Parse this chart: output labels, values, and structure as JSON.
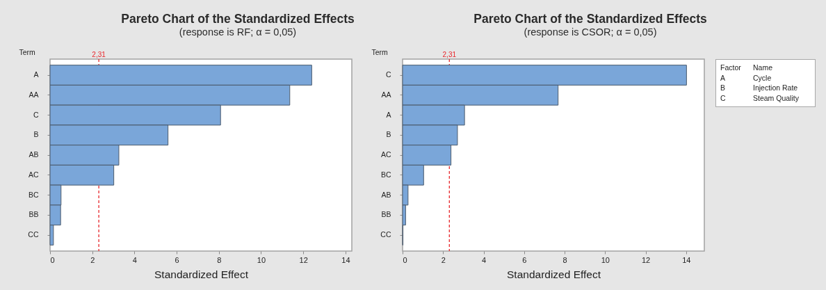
{
  "chart_data": [
    {
      "type": "bar",
      "orientation": "horizontal",
      "title": "Pareto Chart of the Standardized Effects",
      "subtitle": "(response is RF; α = 0,05)",
      "xlabel": "Standardized Effect",
      "ylabel": "Term",
      "categories": [
        "A",
        "AA",
        "C",
        "B",
        "AB",
        "AC",
        "BC",
        "BB",
        "CC"
      ],
      "values": [
        12.4,
        11.36,
        8.08,
        5.59,
        3.26,
        3.02,
        0.52,
        0.5,
        0.16
      ],
      "color": "#7aa6d9",
      "xlim": [
        0,
        14.3
      ],
      "xticks": [
        0,
        2,
        4,
        6,
        8,
        10,
        12,
        14
      ],
      "ref_lines": [
        {
          "axis": "x",
          "value": 2.31,
          "label": "2,31",
          "color": "#e8262b",
          "line_style": "dashed"
        }
      ],
      "grid": false
    },
    {
      "type": "bar",
      "orientation": "horizontal",
      "title": "Pareto Chart of the Standardized Effects",
      "subtitle": "(response is CSOR; α = 0,05)",
      "xlabel": "Standardized Effect",
      "ylabel": "Term",
      "categories": [
        "C",
        "AA",
        "A",
        "B",
        "AC",
        "BC",
        "AB",
        "BB",
        "CC"
      ],
      "values": [
        14.02,
        7.68,
        3.06,
        2.71,
        2.39,
        1.04,
        0.27,
        0.15,
        0.02
      ],
      "color": "#7aa6d9",
      "xlim": [
        0,
        14.9
      ],
      "xticks": [
        0,
        2,
        4,
        6,
        8,
        10,
        12,
        14
      ],
      "ref_lines": [
        {
          "axis": "x",
          "value": 2.31,
          "label": "2,31",
          "color": "#e8262b",
          "line_style": "dashed"
        }
      ],
      "grid": false
    },
    {
      "type": "other",
      "annotations": [
        "Factor",
        "Name",
        "A",
        "Cycle",
        "B",
        "Injection Rate",
        "C",
        "Steam Quality"
      ]
    }
  ]
}
